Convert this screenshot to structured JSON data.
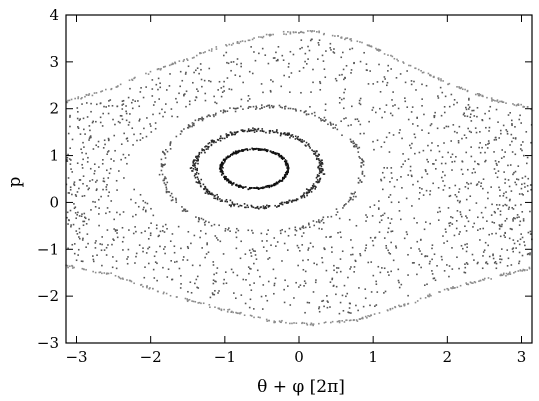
{
  "chart_data": {
    "type": "scatter",
    "xlabel": "θ + φ [2π]",
    "ylabel": "p",
    "xlim": [
      -3.1416,
      3.1416
    ],
    "ylim": [
      -3,
      4
    ],
    "x_ticks": [
      -3,
      -2,
      -1,
      0,
      1,
      2,
      3
    ],
    "y_ticks": [
      -3,
      -2,
      -1,
      0,
      1,
      2,
      3,
      4
    ],
    "x_tick_labels": [
      "−3",
      "−2",
      "−1",
      "0",
      "1",
      "2",
      "3"
    ],
    "y_tick_labels": [
      "−3",
      "−2",
      "−1",
      "0",
      "1",
      "2",
      "3",
      "4"
    ],
    "grid": false,
    "legend": "none",
    "colors": {
      "outer": "#8c8c8c",
      "chaotic": "#555555",
      "islands": "#1a1a1a"
    },
    "series": [
      {
        "role": "outer-separatrix-top",
        "color": "#8c8c8c",
        "band": {
          "type": "curve",
          "x": [
            -3.14,
            -2.5,
            -1.8,
            -1.0,
            -0.3,
            0.2,
            0.8,
            1.4,
            2.0,
            2.6,
            3.14
          ],
          "y": [
            2.15,
            2.45,
            2.9,
            3.35,
            3.6,
            3.65,
            3.45,
            3.0,
            2.55,
            2.2,
            2.0
          ],
          "spread": 0.05,
          "count": 240
        }
      },
      {
        "role": "outer-separatrix-bottom",
        "color": "#8c8c8c",
        "band": {
          "type": "curve",
          "x": [
            -3.14,
            -2.5,
            -1.8,
            -1.0,
            -0.3,
            0.2,
            0.8,
            1.4,
            2.0,
            2.6,
            3.14
          ],
          "y": [
            -1.35,
            -1.55,
            -1.95,
            -2.3,
            -2.55,
            -2.6,
            -2.5,
            -2.2,
            -1.85,
            -1.6,
            -1.4
          ],
          "spread": 0.05,
          "count": 240
        }
      },
      {
        "role": "chaotic-sea",
        "color": "#555555",
        "region": {
          "type": "fill",
          "count": 1450,
          "hole": {
            "cx": -0.6,
            "cy": 0.7,
            "rx": 1.65,
            "ry": 1.45
          }
        }
      },
      {
        "role": "island-ring-outer",
        "color": "#555555",
        "ring": {
          "type": "ellipse",
          "cx": -0.5,
          "cy": 0.7,
          "rx": 1.35,
          "ry": 1.35,
          "spread": 0.06,
          "count": 280
        }
      },
      {
        "role": "island-ring-middle",
        "color": "#2a2a2a",
        "ring": {
          "type": "ellipse",
          "cx": -0.55,
          "cy": 0.72,
          "rx": 0.85,
          "ry": 0.82,
          "spread": 0.09,
          "count": 420
        }
      },
      {
        "role": "island-ring-inner",
        "color": "#111111",
        "ring": {
          "type": "ellipse",
          "cx": -0.6,
          "cy": 0.72,
          "rx": 0.45,
          "ry": 0.42,
          "spread": 0.08,
          "count": 360
        }
      }
    ]
  }
}
